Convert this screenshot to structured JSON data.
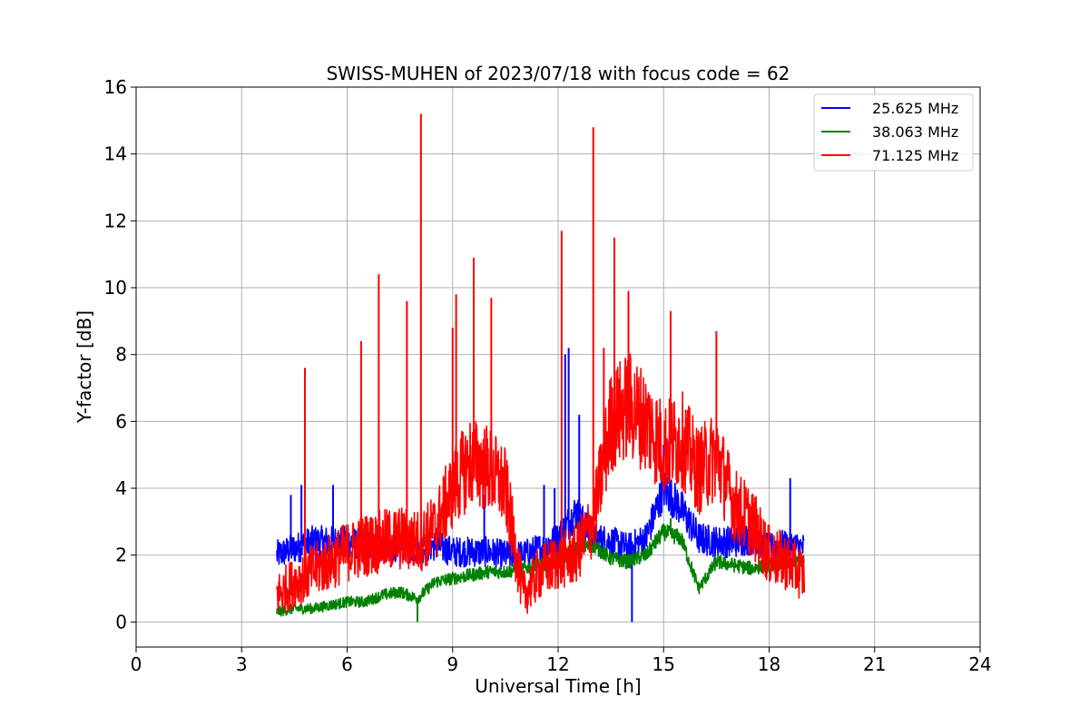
{
  "chart_data": {
    "type": "line",
    "title": "SWISS-MUHEN of 2023/07/18 with focus code = 62",
    "xlabel": "Universal Time [h]",
    "ylabel": "Y-factor [dB]",
    "xlim": [
      0,
      24
    ],
    "ylim": [
      -0.75,
      16
    ],
    "xticks": [
      "0",
      "3",
      "6",
      "9",
      "12",
      "15",
      "18",
      "21",
      "24"
    ],
    "yticks": [
      "0",
      "2",
      "4",
      "6",
      "8",
      "10",
      "12",
      "14",
      "16"
    ],
    "grid": true,
    "legend_position": "top-right",
    "series": [
      {
        "name": "25.625 MHz",
        "color": "#0000ff",
        "x": [
          4.0,
          4.5,
          5.0,
          5.5,
          6.0,
          6.5,
          7.0,
          7.5,
          8.0,
          8.5,
          9.0,
          9.5,
          10.0,
          10.5,
          11.0,
          11.5,
          12.0,
          12.5,
          13.0,
          13.5,
          14.0,
          14.5,
          15.0,
          15.5,
          16.0,
          16.5,
          17.0,
          17.5,
          18.0,
          18.5,
          19.0
        ],
        "y": [
          2.0,
          2.2,
          2.4,
          2.4,
          2.4,
          2.3,
          2.2,
          2.3,
          2.2,
          2.3,
          2.1,
          2.1,
          2.1,
          2.0,
          2.0,
          2.2,
          2.5,
          3.3,
          2.5,
          2.4,
          2.2,
          2.5,
          4.0,
          3.4,
          2.5,
          2.4,
          2.4,
          2.5,
          2.2,
          2.3,
          2.2
        ],
        "peaks": [
          [
            4.7,
            4.1
          ],
          [
            4.4,
            3.8
          ],
          [
            5.6,
            4.1
          ],
          [
            9.9,
            3.8
          ],
          [
            11.6,
            4.1
          ],
          [
            11.9,
            4.0
          ],
          [
            12.3,
            8.2
          ],
          [
            12.2,
            8.0
          ],
          [
            12.6,
            6.2
          ],
          [
            15.0,
            5.3
          ],
          [
            18.6,
            4.3
          ],
          [
            14.1,
            0.0
          ]
        ]
      },
      {
        "name": "38.063 MHz",
        "color": "#008000",
        "x": [
          4.0,
          4.5,
          5.0,
          5.5,
          6.0,
          6.5,
          7.0,
          7.5,
          8.0,
          8.5,
          9.0,
          9.5,
          10.0,
          10.5,
          11.0,
          11.5,
          12.0,
          12.5,
          13.0,
          13.5,
          14.0,
          14.5,
          15.0,
          15.5,
          16.0,
          16.5,
          17.0,
          17.5,
          18.0,
          18.5,
          19.0
        ],
        "y": [
          0.3,
          0.4,
          0.4,
          0.5,
          0.6,
          0.6,
          0.8,
          0.9,
          0.7,
          1.2,
          1.3,
          1.4,
          1.5,
          1.5,
          1.6,
          1.7,
          1.8,
          2.2,
          2.3,
          1.9,
          1.8,
          2.0,
          2.7,
          2.5,
          1.0,
          1.8,
          1.7,
          1.6,
          1.7,
          1.8,
          1.8
        ],
        "peaks": [
          [
            12.6,
            3.0
          ],
          [
            15.2,
            3.1
          ],
          [
            8.0,
            0.0
          ]
        ]
      },
      {
        "name": "71.125 MHz",
        "color": "#ff0000",
        "x": [
          4.0,
          4.5,
          5.0,
          5.5,
          6.0,
          6.5,
          7.0,
          7.5,
          8.0,
          8.5,
          9.0,
          9.5,
          10.0,
          10.5,
          11.0,
          11.5,
          12.0,
          12.5,
          13.0,
          13.5,
          14.0,
          14.5,
          15.0,
          15.5,
          16.0,
          16.5,
          17.0,
          17.5,
          18.0,
          18.5,
          19.0
        ],
        "y": [
          0.8,
          1.2,
          1.5,
          1.8,
          2.1,
          2.3,
          2.4,
          2.5,
          2.4,
          2.8,
          4.0,
          4.8,
          4.6,
          4.0,
          0.8,
          1.5,
          1.8,
          2.0,
          3.0,
          6.0,
          6.5,
          6.0,
          5.2,
          5.5,
          4.5,
          5.0,
          3.5,
          3.0,
          2.0,
          1.8,
          1.4
        ],
        "peaks": [
          [
            4.8,
            7.6
          ],
          [
            6.4,
            8.4
          ],
          [
            6.9,
            10.4
          ],
          [
            7.7,
            9.6
          ],
          [
            8.1,
            15.2
          ],
          [
            9.0,
            8.8
          ],
          [
            9.1,
            9.8
          ],
          [
            9.6,
            10.9
          ],
          [
            10.1,
            9.7
          ],
          [
            12.1,
            11.7
          ],
          [
            13.0,
            14.8
          ],
          [
            13.6,
            11.5
          ],
          [
            14.0,
            9.9
          ],
          [
            15.2,
            9.3
          ],
          [
            16.5,
            8.7
          ],
          [
            13.3,
            8.2
          ]
        ]
      }
    ]
  }
}
